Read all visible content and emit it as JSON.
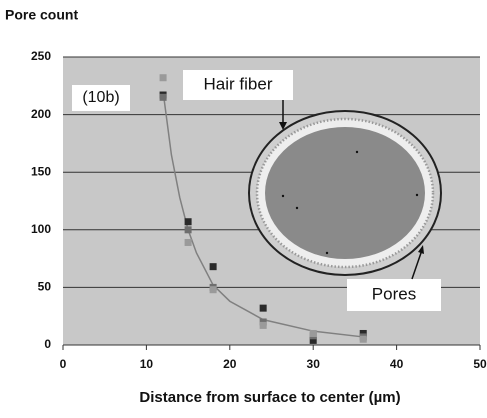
{
  "chart_data": {
    "type": "scatter",
    "title": "Pore count",
    "x_label": "Distance from surface to center (µm)",
    "x": [
      12,
      15,
      18,
      24,
      30,
      36
    ],
    "series": [
      {
        "color": "#2a2a2a",
        "values": [
          217,
          107,
          68,
          32,
          4,
          10
        ]
      },
      {
        "color": "#6e6e6e",
        "values": [
          215,
          100,
          50,
          20,
          8,
          7
        ]
      },
      {
        "color": "#9a9a9a",
        "values": [
          232,
          89,
          48,
          17,
          10,
          5
        ]
      }
    ],
    "trend": {
      "color": "#808080",
      "x": [
        12,
        13,
        14,
        15,
        16,
        18,
        20,
        24,
        30,
        36
      ],
      "values": [
        220,
        165,
        128,
        100,
        80,
        52,
        38,
        22,
        12,
        7
      ]
    },
    "annotations": [
      "(10b)",
      "Hair fiber",
      "Pores"
    ],
    "xlim": [
      0,
      50
    ],
    "xticks": [
      0,
      10,
      20,
      30,
      40,
      50
    ],
    "ylim": [
      0,
      250
    ],
    "yticks": [
      0,
      50,
      100,
      150,
      200,
      250
    ],
    "grid": true
  }
}
